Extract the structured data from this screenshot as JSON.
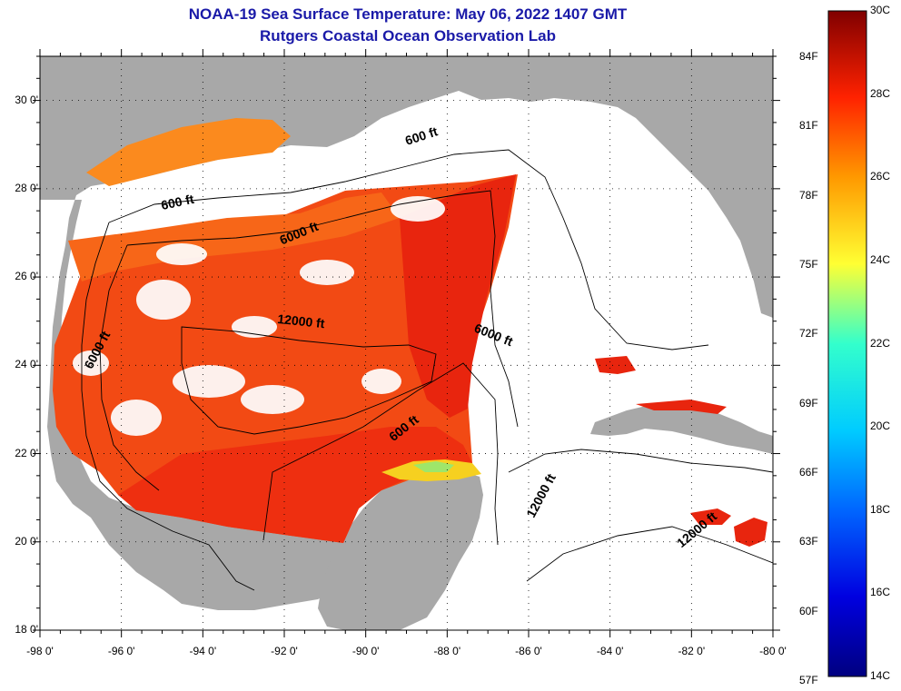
{
  "title": "NOAA-19 Sea Surface Temperature:  May 06, 2022 1407 GMT",
  "subtitle": "Rutgers Coastal Ocean Observation Lab",
  "map": {
    "lon_range": [
      -98,
      -80
    ],
    "lat_range": [
      18,
      31
    ],
    "lat_ticks": [
      {
        "value": 30,
        "label": "30 0'"
      },
      {
        "value": 28,
        "label": "28 0'"
      },
      {
        "value": 26,
        "label": "26 0'"
      },
      {
        "value": 24,
        "label": "24 0'"
      },
      {
        "value": 22,
        "label": "22 0'"
      },
      {
        "value": 20,
        "label": "20 0'"
      },
      {
        "value": 18,
        "label": "18 0'"
      }
    ],
    "lon_ticks": [
      {
        "value": -98,
        "label": "-98 0'"
      },
      {
        "value": -96,
        "label": "-96 0'"
      },
      {
        "value": -94,
        "label": "-94 0'"
      },
      {
        "value": -92,
        "label": "-92 0'"
      },
      {
        "value": -90,
        "label": "-90 0'"
      },
      {
        "value": -88,
        "label": "-88 0'"
      },
      {
        "value": -86,
        "label": "-86 0'"
      },
      {
        "value": -84,
        "label": "-84 0'"
      },
      {
        "value": -82,
        "label": "-82 0'"
      },
      {
        "value": -80,
        "label": "-80 0'"
      }
    ],
    "contour_labels": [
      {
        "text": "600 ft",
        "lon": -88.6,
        "lat": 29.1,
        "angle": -18
      },
      {
        "text": "600 ft",
        "lon": -94.6,
        "lat": 27.6,
        "angle": -12
      },
      {
        "text": "6000 ft",
        "lon": -91.6,
        "lat": 26.9,
        "angle": -22
      },
      {
        "text": "12000 ft",
        "lon": -91.6,
        "lat": 24.9,
        "angle": 6
      },
      {
        "text": "6000 ft",
        "lon": -96.5,
        "lat": 24.3,
        "angle": -62
      },
      {
        "text": "6000 ft",
        "lon": -86.9,
        "lat": 24.6,
        "angle": 22
      },
      {
        "text": "600 ft",
        "lon": -89.0,
        "lat": 22.5,
        "angle": -38
      },
      {
        "text": "12000 ft",
        "lon": -85.6,
        "lat": 21.0,
        "angle": -62
      },
      {
        "text": "12000 ft",
        "lon": -81.8,
        "lat": 20.2,
        "angle": -40
      }
    ],
    "colors": {
      "land": "#a8a8a8",
      "cloud": "#ffffff",
      "ocean_warm": "#f03a12",
      "ocean_mid": "#f86a14",
      "ocean_cool": "#fb9420",
      "contour": "#000000"
    }
  },
  "colorbar": {
    "min_c": 14,
    "max_c": 30,
    "celsius_labels": [
      "30C",
      "28C",
      "26C",
      "24C",
      "22C",
      "20C",
      "18C",
      "16C",
      "14C"
    ],
    "fahrenheit_labels": [
      {
        "value": 84,
        "label": "84F"
      },
      {
        "value": 81,
        "label": "81F"
      },
      {
        "value": 78,
        "label": "78F"
      },
      {
        "value": 75,
        "label": "75F"
      },
      {
        "value": 72,
        "label": "72F"
      },
      {
        "value": 69,
        "label": "69F"
      },
      {
        "value": 66,
        "label": "66F"
      },
      {
        "value": 63,
        "label": "63F"
      },
      {
        "value": 60,
        "label": "60F"
      },
      {
        "value": 57,
        "label": "57F"
      }
    ]
  }
}
